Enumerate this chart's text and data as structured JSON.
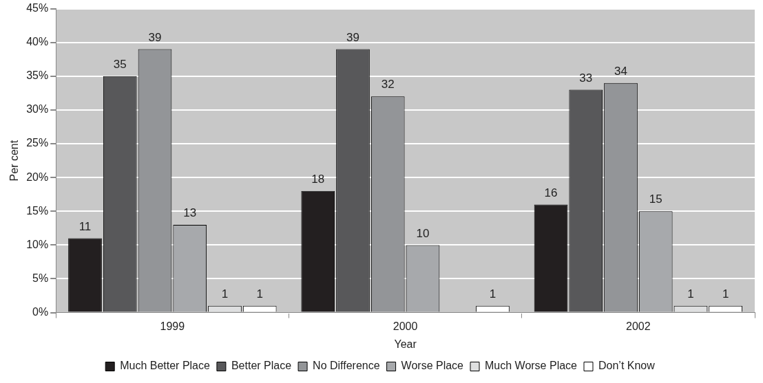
{
  "chart_data": {
    "type": "bar",
    "xlabel": "Year",
    "ylabel": "Per cent",
    "categories": [
      "1999",
      "2000",
      "2002"
    ],
    "series": [
      {
        "name": "Much Better Place",
        "color": "#231f20",
        "values": [
          11,
          18,
          16
        ]
      },
      {
        "name": "Better Place",
        "color": "#58585a",
        "values": [
          35,
          39,
          33
        ]
      },
      {
        "name": "No Difference",
        "color": "#939598",
        "values": [
          39,
          32,
          34
        ]
      },
      {
        "name": "Worse Place",
        "color": "#a7a9ac",
        "values": [
          13,
          10,
          15
        ]
      },
      {
        "name": "Much Worse Place",
        "color": "#dedfe0",
        "values": [
          1,
          null,
          1
        ]
      },
      {
        "name": "Don’t Know",
        "color": "#ffffff",
        "values": [
          1,
          1,
          1
        ]
      }
    ],
    "ylim": [
      0,
      45
    ],
    "yticks": [
      {
        "value": 0,
        "label": "0%"
      },
      {
        "value": 5,
        "label": "5%"
      },
      {
        "value": 10,
        "label": "10%"
      },
      {
        "value": 15,
        "label": "15%"
      },
      {
        "value": 20,
        "label": "20%"
      },
      {
        "value": 25,
        "label": "25%"
      },
      {
        "value": 30,
        "label": "30%"
      },
      {
        "value": 35,
        "label": "35%"
      },
      {
        "value": 40,
        "label": "40%"
      },
      {
        "value": 45,
        "label": "45%"
      }
    ],
    "grid": "y",
    "legend": "bottom",
    "data_labels": true
  }
}
